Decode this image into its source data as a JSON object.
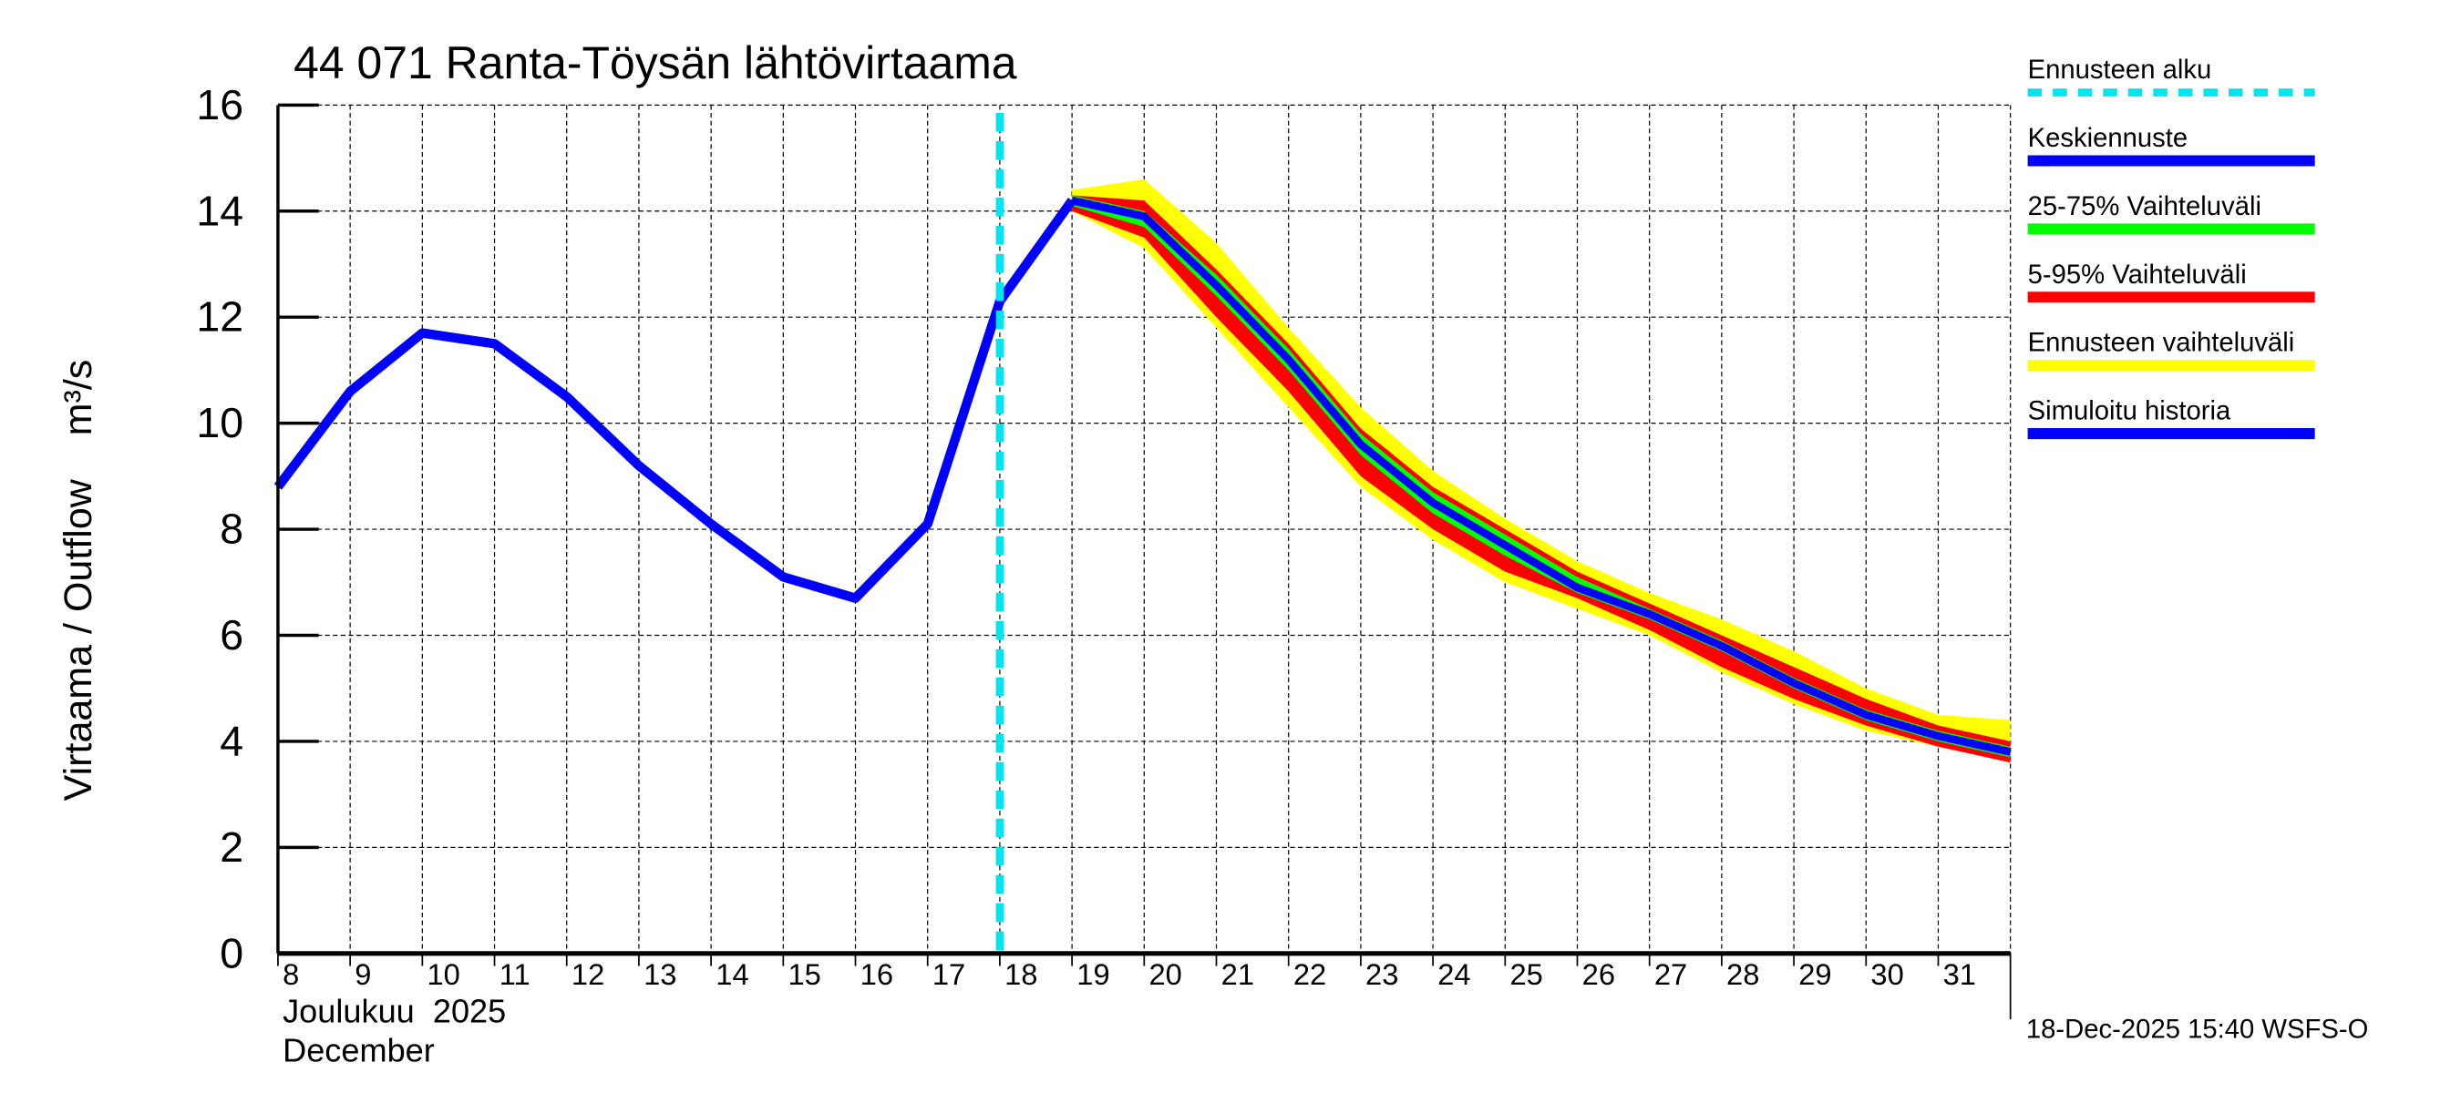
{
  "chart_data": {
    "type": "line",
    "title": "44 071 Ranta-Töysän lähtövirtaama",
    "ylabel": "Virtaama / Outflow    m³/s",
    "xlabel_line1": "Joulukuu  2025",
    "xlabel_line2": "December",
    "timestamp": "18-Dec-2025 15:40 WSFS-O",
    "ylim": [
      0,
      16
    ],
    "yticks": [
      0,
      2,
      4,
      6,
      8,
      10,
      12,
      14,
      16
    ],
    "xlim": [
      8,
      32
    ],
    "xticks": [
      "8",
      "9",
      "10",
      "11",
      "12",
      "13",
      "14",
      "15",
      "16",
      "17",
      "18",
      "19",
      "20",
      "21",
      "22",
      "23",
      "24",
      "25",
      "26",
      "27",
      "28",
      "29",
      "30",
      "31"
    ],
    "grid": true,
    "forecast_start_day": 18,
    "colors": {
      "history": "#0000ff",
      "median": "#0000ff",
      "p25_75": "#00ff00",
      "p5_95": "#ff0000",
      "range": "#ffff00",
      "forecast_start": "#00e5ee"
    },
    "history": {
      "x": [
        8,
        9,
        10,
        11,
        12,
        13,
        14,
        15,
        16,
        17,
        18,
        19
      ],
      "y": [
        8.8,
        10.6,
        11.7,
        11.5,
        10.5,
        9.2,
        8.1,
        7.1,
        6.7,
        8.1,
        12.3,
        14.2
      ]
    },
    "forecast_x": [
      19,
      20,
      21,
      22,
      23,
      24,
      25,
      26,
      27,
      28,
      29,
      30,
      31,
      32
    ],
    "median": [
      14.2,
      13.9,
      12.6,
      11.2,
      9.6,
      8.5,
      7.7,
      6.9,
      6.4,
      5.8,
      5.1,
      4.5,
      4.1,
      3.8
    ],
    "p25": [
      14.1,
      13.7,
      12.4,
      11.0,
      9.4,
      8.3,
      7.5,
      6.8,
      6.3,
      5.7,
      5.0,
      4.4,
      4.0,
      3.7
    ],
    "p75": [
      14.3,
      14.0,
      12.8,
      11.4,
      9.8,
      8.7,
      7.9,
      7.1,
      6.5,
      5.9,
      5.2,
      4.6,
      4.2,
      3.9
    ],
    "p5": [
      14.0,
      13.5,
      12.0,
      10.6,
      9.0,
      8.0,
      7.2,
      6.7,
      6.1,
      5.4,
      4.8,
      4.3,
      3.9,
      3.6
    ],
    "p95": [
      14.3,
      14.2,
      12.9,
      11.5,
      9.9,
      8.8,
      8.0,
      7.2,
      6.6,
      6.0,
      5.4,
      4.8,
      4.3,
      4.0
    ],
    "range_min": [
      14.0,
      13.3,
      11.8,
      10.3,
      8.8,
      7.8,
      7.0,
      6.5,
      6.0,
      5.3,
      4.7,
      4.2,
      3.9,
      3.6
    ],
    "range_max": [
      14.4,
      14.6,
      13.4,
      11.8,
      10.3,
      9.1,
      8.2,
      7.4,
      6.8,
      6.3,
      5.7,
      5.0,
      4.5,
      4.4
    ],
    "legend": [
      {
        "label": "Ennusteen alku",
        "color": "#00e5ee",
        "style": "dashed"
      },
      {
        "label": "Keskiennuste",
        "color": "#0000ff",
        "style": "solid"
      },
      {
        "label": "25-75% Vaihteluväli",
        "color": "#00ff00",
        "style": "solid"
      },
      {
        "label": "5-95% Vaihteluväli",
        "color": "#ff0000",
        "style": "solid"
      },
      {
        "label": "Ennusteen vaihteluväli",
        "color": "#ffff00",
        "style": "solid"
      },
      {
        "label": "Simuloitu historia",
        "color": "#0000ff",
        "style": "solid"
      }
    ],
    "legend_position": "right"
  }
}
